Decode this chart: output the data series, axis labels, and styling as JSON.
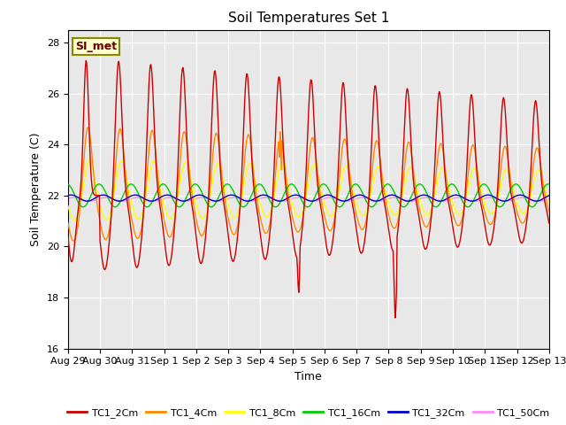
{
  "title": "Soil Temperatures Set 1",
  "xlabel": "Time",
  "ylabel": "Soil Temperature (C)",
  "ylim": [
    16,
    28.5
  ],
  "background_color": "#e8e8e8",
  "series_colors": {
    "TC1_2Cm": "#cc0000",
    "TC1_4Cm": "#ff8800",
    "TC1_8Cm": "#ffff00",
    "TC1_16Cm": "#00cc00",
    "TC1_32Cm": "#0000cc",
    "TC1_50Cm": "#ff88ff"
  },
  "legend_label": "SI_met",
  "x_tick_labels": [
    "Aug 29",
    "Aug 30",
    "Aug 31",
    "Sep 1",
    "Sep 2",
    "Sep 3",
    "Sep 4",
    "Sep 5",
    "Sep 6",
    "Sep 7",
    "Sep 8",
    "Sep 9",
    "Sep 10",
    "Sep 11",
    "Sep 12",
    "Sep 13"
  ],
  "yticks": [
    16,
    18,
    20,
    22,
    24,
    26,
    28
  ],
  "n_days": 15
}
